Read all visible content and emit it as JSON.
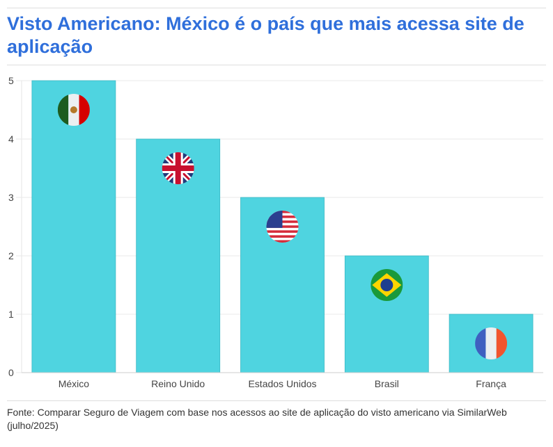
{
  "title": "Visto Americano: México é o país que mais acessa site de aplicação",
  "source": "Fonte: Comparar Seguro de Viagem com base nos acessos ao site de aplicação do visto americano via SimilarWeb (julho/2025)",
  "chart_data": {
    "type": "bar",
    "title": "Visto Americano: México é o país que mais acessa site de aplicação",
    "categories": [
      "México",
      "Reino Unido",
      "Estados Unidos",
      "Brasil",
      "França"
    ],
    "values": [
      5,
      4,
      3,
      2,
      1
    ],
    "flags": [
      "mexico-flag",
      "uk-flag",
      "usa-flag",
      "brazil-flag",
      "france-flag"
    ],
    "ylim": [
      0,
      5
    ],
    "yticks": [
      "0",
      "1",
      "2",
      "3",
      "4",
      "5"
    ],
    "grid": true,
    "bar_color": "#4fd4e0",
    "title_color": "#2f6fdb"
  }
}
